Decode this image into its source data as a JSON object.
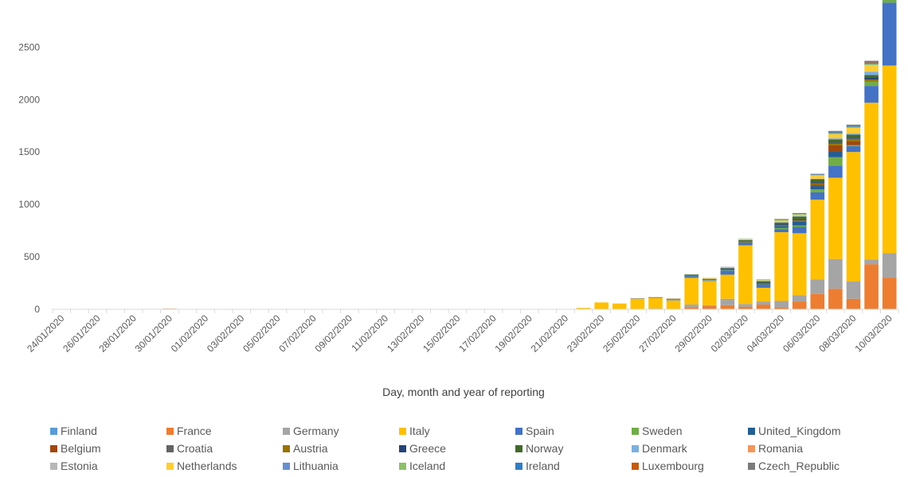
{
  "chart_data": {
    "type": "bar",
    "stacked": true,
    "title": "",
    "xlabel": "Day, month and year of reporting",
    "ylabel": "",
    "ylim": [
      0,
      2950
    ],
    "yticks": [
      0,
      500,
      1000,
      1500,
      2000,
      2500
    ],
    "grid": false,
    "legend": "bottom",
    "categories": [
      "24/01/2020",
      "25/01/2020",
      "26/01/2020",
      "27/01/2020",
      "28/01/2020",
      "29/01/2020",
      "30/01/2020",
      "31/01/2020",
      "01/02/2020",
      "02/02/2020",
      "03/02/2020",
      "04/02/2020",
      "05/02/2020",
      "06/02/2020",
      "07/02/2020",
      "08/02/2020",
      "09/02/2020",
      "10/02/2020",
      "11/02/2020",
      "12/02/2020",
      "13/02/2020",
      "14/02/2020",
      "15/02/2020",
      "16/02/2020",
      "17/02/2020",
      "18/02/2020",
      "19/02/2020",
      "20/02/2020",
      "21/02/2020",
      "22/02/2020",
      "23/02/2020",
      "24/02/2020",
      "25/02/2020",
      "26/02/2020",
      "27/02/2020",
      "28/02/2020",
      "29/02/2020",
      "01/03/2020",
      "02/03/2020",
      "03/03/2020",
      "04/03/2020",
      "05/03/2020",
      "06/03/2020",
      "07/03/2020",
      "08/03/2020",
      "09/03/2020",
      "10/03/2020"
    ],
    "x_tick_labels": [
      "24/01/2020",
      "26/01/2020",
      "28/01/2020",
      "30/01/2020",
      "01/02/2020",
      "03/02/2020",
      "05/02/2020",
      "07/02/2020",
      "09/02/2020",
      "11/02/2020",
      "13/02/2020",
      "15/02/2020",
      "17/02/2020",
      "19/02/2020",
      "21/02/2020",
      "23/02/2020",
      "25/02/2020",
      "27/02/2020",
      "29/02/2020",
      "02/03/2020",
      "04/03/2020",
      "06/03/2020",
      "08/03/2020",
      "10/03/2020"
    ],
    "series": [
      {
        "name": "Finland",
        "color": "#5b9bd5",
        "values": [
          0,
          0,
          0,
          0,
          0,
          0,
          1,
          0,
          0,
          0,
          0,
          0,
          0,
          0,
          0,
          0,
          0,
          0,
          0,
          0,
          0,
          0,
          0,
          0,
          0,
          0,
          0,
          0,
          0,
          0,
          0,
          0,
          1,
          0,
          0,
          0,
          0,
          0,
          0,
          0,
          0,
          0,
          0,
          0,
          0,
          0,
          0
        ]
      },
      {
        "name": "France",
        "color": "#ed7d31",
        "values": [
          3,
          0,
          0,
          0,
          0,
          0,
          5,
          0,
          0,
          0,
          0,
          0,
          0,
          0,
          0,
          0,
          0,
          0,
          0,
          0,
          0,
          0,
          0,
          0,
          0,
          0,
          0,
          0,
          0,
          0,
          0,
          0,
          0,
          2,
          0,
          20,
          30,
          40,
          25,
          45,
          20,
          75,
          145,
          195,
          100,
          430,
          300
        ]
      },
      {
        "name": "Germany",
        "color": "#a5a5a5",
        "values": [
          0,
          0,
          0,
          0,
          0,
          4,
          0,
          0,
          2,
          1,
          0,
          2,
          0,
          0,
          1,
          0,
          0,
          0,
          0,
          0,
          0,
          0,
          0,
          0,
          0,
          0,
          0,
          0,
          0,
          0,
          0,
          0,
          0,
          5,
          0,
          25,
          10,
          60,
          25,
          30,
          60,
          60,
          140,
          285,
          165,
          45,
          235
        ]
      },
      {
        "name": "Italy",
        "color": "#ffc000",
        "values": [
          0,
          0,
          0,
          0,
          0,
          0,
          0,
          0,
          0,
          0,
          0,
          0,
          0,
          0,
          0,
          0,
          0,
          0,
          0,
          0,
          0,
          0,
          0,
          0,
          0,
          0,
          0,
          0,
          0,
          13,
          65,
          55,
          100,
          100,
          85,
          255,
          230,
          230,
          560,
          130,
          655,
          590,
          760,
          775,
          1235,
          1495,
          1790
        ]
      },
      {
        "name": "Spain",
        "color": "#4472c4",
        "values": [
          0,
          0,
          0,
          0,
          0,
          0,
          0,
          0,
          0,
          0,
          0,
          0,
          0,
          0,
          0,
          0,
          0,
          0,
          0,
          0,
          0,
          0,
          0,
          0,
          0,
          0,
          0,
          0,
          0,
          0,
          0,
          0,
          2,
          3,
          5,
          15,
          5,
          40,
          12,
          25,
          30,
          60,
          70,
          115,
          55,
          160,
          600
        ]
      },
      {
        "name": "Sweden",
        "color": "#70ad47",
        "values": [
          0,
          0,
          0,
          0,
          0,
          0,
          0,
          0,
          0,
          0,
          0,
          0,
          0,
          0,
          0,
          0,
          0,
          0,
          0,
          0,
          0,
          0,
          0,
          0,
          0,
          0,
          0,
          0,
          0,
          0,
          0,
          0,
          0,
          1,
          2,
          2,
          3,
          5,
          2,
          1,
          10,
          15,
          30,
          80,
          10,
          40,
          30
        ]
      },
      {
        "name": "United_Kingdom",
        "color": "#255e91",
        "values": [
          0,
          0,
          0,
          0,
          0,
          0,
          0,
          2,
          1,
          0,
          0,
          0,
          0,
          0,
          0,
          2,
          0,
          0,
          0,
          0,
          0,
          0,
          0,
          0,
          0,
          0,
          0,
          0,
          0,
          0,
          0,
          0,
          0,
          0,
          1,
          5,
          2,
          15,
          12,
          10,
          20,
          40,
          30,
          55,
          0,
          0,
          0
        ]
      },
      {
        "name": "Belgium",
        "color": "#9e480e",
        "values": [
          0,
          0,
          0,
          0,
          0,
          0,
          0,
          0,
          0,
          0,
          0,
          0,
          0,
          0,
          1,
          0,
          0,
          0,
          0,
          0,
          0,
          0,
          0,
          0,
          0,
          0,
          0,
          0,
          0,
          0,
          0,
          0,
          0,
          0,
          0,
          0,
          0,
          0,
          0,
          0,
          0,
          0,
          15,
          60,
          40,
          0,
          0
        ]
      },
      {
        "name": "Croatia",
        "color": "#636363",
        "values": [
          0,
          0,
          0,
          0,
          0,
          0,
          0,
          0,
          0,
          0,
          0,
          0,
          0,
          0,
          0,
          0,
          0,
          0,
          0,
          0,
          0,
          0,
          0,
          0,
          0,
          0,
          0,
          0,
          0,
          0,
          0,
          0,
          1,
          2,
          1,
          0,
          0,
          1,
          2,
          0,
          0,
          0,
          0,
          0,
          0,
          0,
          0
        ]
      },
      {
        "name": "Austria",
        "color": "#997300",
        "values": [
          0,
          0,
          0,
          0,
          0,
          0,
          0,
          0,
          0,
          0,
          0,
          0,
          0,
          0,
          0,
          0,
          0,
          0,
          0,
          0,
          0,
          0,
          0,
          0,
          0,
          0,
          0,
          0,
          0,
          0,
          0,
          0,
          1,
          1,
          2,
          0,
          2,
          3,
          5,
          4,
          6,
          8,
          10,
          15,
          20,
          20,
          0
        ]
      },
      {
        "name": "Greece",
        "color": "#264478",
        "values": [
          0,
          0,
          0,
          0,
          0,
          0,
          0,
          0,
          0,
          0,
          0,
          0,
          0,
          0,
          0,
          0,
          0,
          0,
          0,
          0,
          0,
          0,
          0,
          0,
          0,
          0,
          0,
          0,
          0,
          0,
          0,
          0,
          1,
          1,
          2,
          3,
          2,
          0,
          1,
          10,
          10,
          10,
          10,
          10,
          10,
          20,
          0
        ]
      },
      {
        "name": "Norway",
        "color": "#43682b",
        "values": [
          0,
          0,
          0,
          0,
          0,
          0,
          0,
          0,
          0,
          0,
          0,
          0,
          0,
          0,
          0,
          0,
          0,
          0,
          0,
          0,
          0,
          0,
          0,
          0,
          0,
          0,
          0,
          0,
          0,
          0,
          0,
          0,
          0,
          0,
          1,
          5,
          6,
          1,
          15,
          12,
          15,
          25,
          30,
          30,
          30,
          25,
          0
        ]
      },
      {
        "name": "Denmark",
        "color": "#7cafdd",
        "values": [
          0,
          0,
          0,
          0,
          0,
          0,
          0,
          0,
          0,
          0,
          0,
          0,
          0,
          0,
          0,
          0,
          0,
          0,
          0,
          0,
          0,
          0,
          0,
          0,
          0,
          0,
          0,
          0,
          0,
          0,
          0,
          0,
          0,
          0,
          1,
          0,
          0,
          0,
          1,
          5,
          5,
          5,
          5,
          10,
          10,
          30,
          0
        ]
      },
      {
        "name": "Romania",
        "color": "#f1975a",
        "values": [
          0,
          0,
          0,
          0,
          0,
          0,
          0,
          0,
          0,
          0,
          0,
          0,
          0,
          0,
          0,
          0,
          0,
          0,
          0,
          0,
          0,
          0,
          0,
          0,
          0,
          0,
          0,
          0,
          0,
          0,
          0,
          0,
          0,
          1,
          2,
          0,
          0,
          1,
          0,
          0,
          0,
          0,
          1,
          0,
          0,
          0,
          0
        ]
      },
      {
        "name": "Estonia",
        "color": "#b7b7b7",
        "values": [
          0,
          0,
          0,
          0,
          0,
          0,
          0,
          0,
          0,
          0,
          0,
          0,
          0,
          0,
          0,
          0,
          0,
          0,
          0,
          0,
          0,
          0,
          0,
          0,
          0,
          0,
          0,
          0,
          0,
          0,
          0,
          0,
          0,
          0,
          1,
          0,
          0,
          0,
          0,
          0,
          0,
          0,
          0,
          0,
          5,
          5,
          0
        ]
      },
      {
        "name": "Netherlands",
        "color": "#ffcd33",
        "values": [
          0,
          0,
          0,
          0,
          0,
          0,
          0,
          0,
          0,
          0,
          0,
          0,
          0,
          0,
          0,
          0,
          0,
          0,
          0,
          0,
          0,
          0,
          0,
          0,
          0,
          0,
          0,
          0,
          0,
          0,
          0,
          0,
          0,
          0,
          1,
          1,
          5,
          5,
          10,
          5,
          15,
          15,
          30,
          40,
          50,
          60,
          0
        ]
      },
      {
        "name": "Lithuania",
        "color": "#698ed0",
        "values": [
          0,
          0,
          0,
          0,
          0,
          0,
          0,
          0,
          0,
          0,
          0,
          0,
          0,
          0,
          0,
          0,
          0,
          0,
          0,
          0,
          0,
          0,
          0,
          0,
          0,
          0,
          0,
          0,
          0,
          0,
          0,
          0,
          0,
          0,
          1,
          0,
          0,
          0,
          0,
          0,
          0,
          0,
          0,
          0,
          0,
          0,
          0
        ]
      },
      {
        "name": "Iceland",
        "color": "#8cc168",
        "values": [
          0,
          0,
          0,
          0,
          0,
          0,
          0,
          0,
          0,
          0,
          0,
          0,
          0,
          0,
          0,
          0,
          0,
          0,
          0,
          0,
          0,
          0,
          0,
          0,
          0,
          0,
          0,
          0,
          0,
          0,
          0,
          0,
          0,
          0,
          0,
          1,
          1,
          0,
          2,
          5,
          5,
          5,
          5,
          10,
          10,
          10,
          10
        ]
      },
      {
        "name": "Ireland",
        "color": "#327dc2",
        "values": [
          0,
          0,
          0,
          0,
          0,
          0,
          0,
          0,
          0,
          0,
          0,
          0,
          0,
          0,
          0,
          0,
          0,
          0,
          0,
          0,
          0,
          0,
          0,
          0,
          0,
          0,
          0,
          0,
          0,
          0,
          0,
          0,
          0,
          0,
          0,
          1,
          1,
          0,
          1,
          1,
          5,
          5,
          5,
          10,
          10,
          10,
          0
        ]
      },
      {
        "name": "Luxembourg",
        "color": "#c55a11",
        "values": [
          0,
          0,
          0,
          0,
          0,
          0,
          0,
          0,
          0,
          0,
          0,
          0,
          0,
          0,
          0,
          0,
          0,
          0,
          0,
          0,
          0,
          0,
          0,
          0,
          0,
          0,
          0,
          0,
          0,
          0,
          0,
          0,
          0,
          0,
          0,
          0,
          1,
          0,
          0,
          0,
          0,
          0,
          1,
          1,
          1,
          5,
          0
        ]
      },
      {
        "name": "Czech_Republic",
        "color": "#7b7b7b",
        "values": [
          0,
          0,
          0,
          0,
          0,
          0,
          0,
          0,
          0,
          0,
          0,
          0,
          0,
          0,
          0,
          0,
          0,
          0,
          0,
          0,
          0,
          0,
          0,
          0,
          0,
          0,
          0,
          0,
          0,
          0,
          0,
          0,
          0,
          0,
          0,
          0,
          0,
          3,
          0,
          2,
          5,
          5,
          5,
          10,
          10,
          15,
          0
        ]
      }
    ]
  }
}
